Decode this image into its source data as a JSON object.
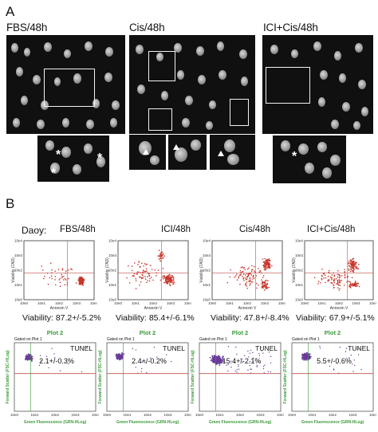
{
  "panel_a": {
    "letter": "A",
    "conditions": [
      {
        "label": "FBS/48h"
      },
      {
        "label": "Cis/48h"
      },
      {
        "label": "ICI+Cis/48h"
      }
    ]
  },
  "panel_b": {
    "letter": "B",
    "cell_line": "Daoy:",
    "conditions": [
      {
        "label": "FBS/48h",
        "viability": "Viability: 87.2+/-5.2%",
        "tunel_pct": "2.1+/-0.3%"
      },
      {
        "label": "ICI/48h",
        "viability": "Viability: 85.4+/-6.1%",
        "tunel_pct": "2.4+/-0.2%"
      },
      {
        "label": "Cis/48h",
        "viability": "Viability: 47.8+/-8.4%",
        "tunel_pct": "15.4+/-2.1%"
      },
      {
        "label": "ICI+Cis/48h",
        "viability": "Viability: 67.9+/-5.1%",
        "tunel_pct": "5.5+/-0.6%"
      }
    ],
    "flow_ylabel": "Viability (7AD)",
    "flow_xlabel": "Annexin V",
    "tunel_title": "Plot 2",
    "tunel_gated": "Gated on Plot 1",
    "tunel_label": "TUNEL",
    "tunel_ylabel": "Forward Scatter (FSC-HLog)",
    "tunel_xlabel": "Green Fluorescence (GRN-HLog)",
    "flow_ticks": [
      "10e0",
      "10e1",
      "10e2",
      "10e3",
      "10e4"
    ],
    "tunel_ticks": [
      "10e0",
      "10e1",
      "10e2",
      "10e3",
      "10e4"
    ]
  },
  "colors": {
    "dot_red": "#c8362b",
    "dot_purple": "#6a3a9a",
    "gate_red": "#c0504d",
    "tunel_green": "#3a9a3a"
  }
}
